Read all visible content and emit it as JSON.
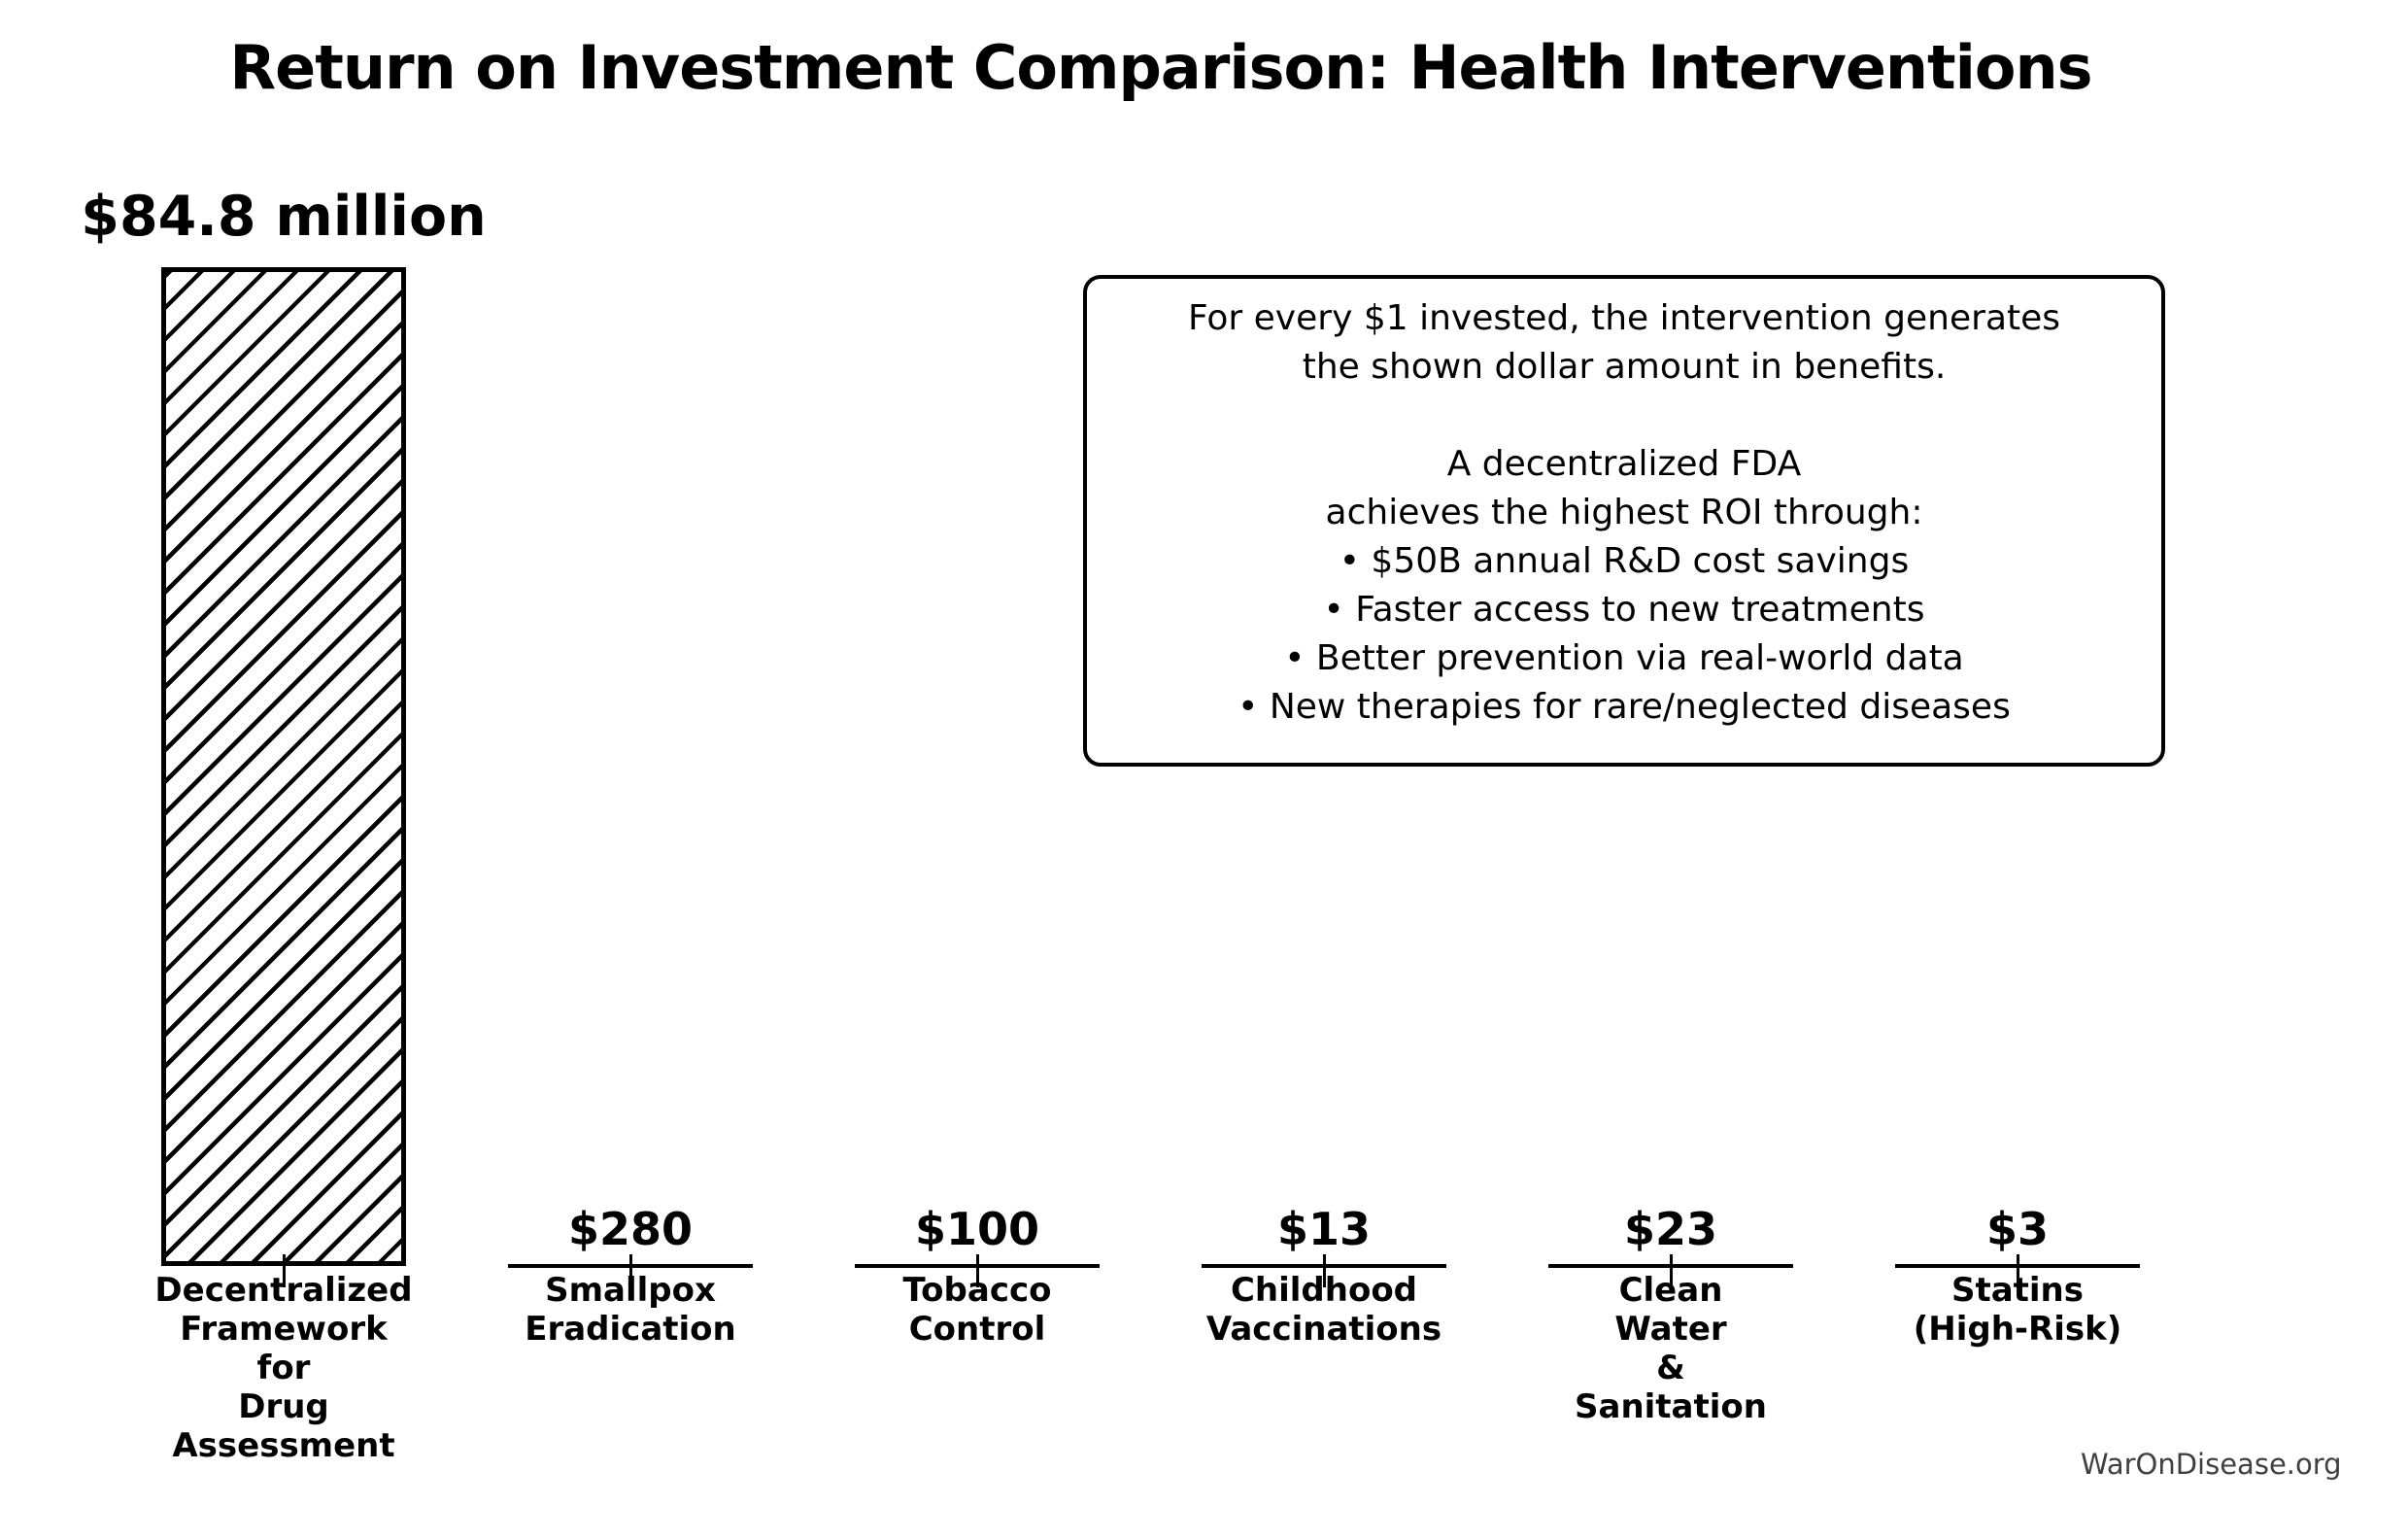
{
  "chart_data": {
    "type": "bar",
    "title": "Return on Investment Comparison: Health Interventions",
    "categories": [
      "Decentralized Framework for Drug Assessment",
      "Smallpox Eradication",
      "Tobacco Control",
      "Childhood Vaccinations",
      "Clean Water & Sanitation",
      "Statins (High-Risk)"
    ],
    "categories_display": [
      "Decentralized\nFramework\nfor\nDrug\nAssessment",
      "Smallpox\nEradication",
      "Tobacco\nControl",
      "Childhood\nVaccinations",
      "Clean\nWater\n&\nSanitation",
      "Statins\n(High-Risk)"
    ],
    "values": [
      84800000,
      280,
      100,
      13,
      23,
      3
    ],
    "value_labels": [
      "$84.8 million",
      "$280",
      "$100",
      "$13",
      "$23",
      "$3"
    ],
    "ylim": [
      0,
      84800000
    ],
    "xlabel": "",
    "ylabel": "",
    "grid": false,
    "legend": false,
    "bar_style": {
      "fill": "#ffffff",
      "edge_color": "#000000",
      "hatch": "/"
    },
    "annotation": [
      "For every $1 invested, the intervention generates",
      "the shown dollar amount in benefits.",
      "",
      "A decentralized FDA",
      "achieves the highest ROI through:",
      "• $50B annual R&D cost savings",
      "• Faster access to new treatments",
      "• Better prevention via real-world data",
      "• New therapies for rare/neglected diseases"
    ],
    "watermark": "WarOnDisease.org"
  }
}
